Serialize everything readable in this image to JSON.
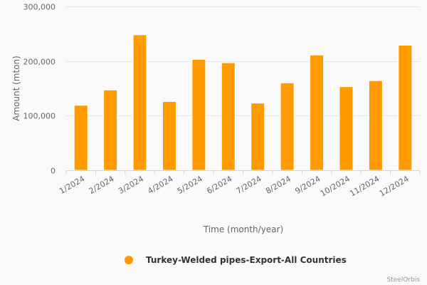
{
  "chart_data": {
    "type": "bar",
    "title": "",
    "xlabel": "Time (month/year)",
    "ylabel": "Amount (mton)",
    "ylim": [
      0,
      300000
    ],
    "yticks": [
      "0",
      "100,000",
      "200,000",
      "300,000"
    ],
    "ytick_values": [
      0,
      100000,
      200000,
      300000
    ],
    "categories": [
      "1/2024",
      "2/2024",
      "3/2024",
      "4/2024",
      "5/2024",
      "6/2024",
      "7/2024",
      "8/2024",
      "9/2024",
      "10/2024",
      "11/2024",
      "12/2024"
    ],
    "series": [
      {
        "name": "Turkey-Welded pipes-Export-All Countries",
        "color": "#ff9a00",
        "values": [
          119000,
          147000,
          248000,
          126000,
          203000,
          197000,
          123000,
          160000,
          211000,
          153000,
          164000,
          229000
        ]
      }
    ],
    "grid": true,
    "legend": "bottom-center"
  },
  "credit": "SteelOrbis"
}
